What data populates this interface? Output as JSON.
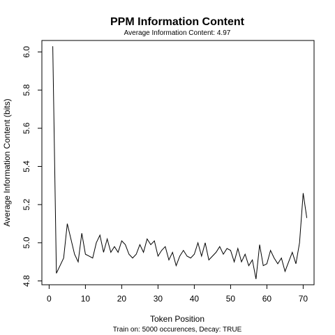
{
  "chart_data": {
    "type": "line",
    "title": "PPM Information Content",
    "subtitle": "Average Information Content: 4.97",
    "xlabel": "Token Position",
    "ylabel": "Average Information Content (bits)",
    "footnote": "Train on: 5000 occurences, Decay: TRUE",
    "xlim": [
      -2,
      73
    ],
    "ylim": [
      4.78,
      6.06
    ],
    "xticks": [
      0,
      10,
      20,
      30,
      40,
      50,
      60,
      70
    ],
    "yticks": [
      4.8,
      5.0,
      5.2,
      5.4,
      5.6,
      5.8,
      6.0
    ],
    "xtick_labels": [
      "0",
      "10",
      "20",
      "30",
      "40",
      "50",
      "60",
      "70"
    ],
    "ytick_labels": [
      "4.8",
      "5.0",
      "5.2",
      "5.4",
      "5.6",
      "5.8",
      "6.0"
    ],
    "grid": false,
    "legend": "none",
    "line_color": "#000000",
    "series": [
      {
        "x": [
          1,
          2,
          3,
          4,
          5,
          6,
          7,
          8,
          9,
          10,
          11,
          12,
          13,
          14,
          15,
          16,
          17,
          18,
          19,
          20,
          21,
          22,
          23,
          24,
          25,
          26,
          27,
          28,
          29,
          30,
          31,
          32,
          33,
          34,
          35,
          36,
          37,
          38,
          39,
          40,
          41,
          42,
          43,
          44,
          45,
          46,
          47,
          48,
          49,
          50,
          51,
          52,
          53,
          54,
          55,
          56,
          57,
          58,
          59,
          60,
          61,
          62,
          63,
          64,
          65,
          66,
          67,
          68,
          69,
          70,
          71
        ],
        "y": [
          6.03,
          4.84,
          4.88,
          4.92,
          5.1,
          5.02,
          4.94,
          4.9,
          5.05,
          4.94,
          4.93,
          4.92,
          5.0,
          5.04,
          4.95,
          5.02,
          4.95,
          4.98,
          4.95,
          5.01,
          4.99,
          4.94,
          4.92,
          4.94,
          4.99,
          4.95,
          5.02,
          4.99,
          5.01,
          4.93,
          4.96,
          4.98,
          4.91,
          4.95,
          4.88,
          4.93,
          4.96,
          4.93,
          4.92,
          4.94,
          5.0,
          4.93,
          5.0,
          4.91,
          4.93,
          4.95,
          4.98,
          4.94,
          4.97,
          4.96,
          4.9,
          4.97,
          4.9,
          4.94,
          4.88,
          4.91,
          4.81,
          4.99,
          4.88,
          4.89,
          4.96,
          4.92,
          4.89,
          4.92,
          4.85,
          4.9,
          4.95,
          4.89,
          5.0,
          5.26,
          5.13
        ]
      }
    ]
  }
}
